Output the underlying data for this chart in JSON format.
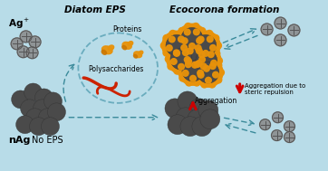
{
  "bg_color": "#b8dce8",
  "title_diatom_eps": "Diatom EPS",
  "title_ecocorona": "Ecocorona formation",
  "label_ag_plus": "Ag$^+$",
  "label_nag": "nAg",
  "label_no_eps": "No EPS",
  "label_proteins": "Proteins",
  "label_polysaccharides": "Polysaccharides",
  "label_aggregation_steric": "Aggregation due to\nsteric repulsion",
  "label_aggregation": "Aggregation",
  "nag_color": "#4a4a4a",
  "nag_edge_color": "#333333",
  "orange_color": "#E8920A",
  "orange_dark": "#CC6600",
  "red_color": "#CC0000",
  "teal_color": "#3a8a9a",
  "ion_color": "#888888",
  "ion_edge": "#555555",
  "eps_circle_color": "#6aacbe",
  "protein_orange": "#E8920A",
  "protein_dark_orange": "#CC7700",
  "poly_red": "#CC2200"
}
